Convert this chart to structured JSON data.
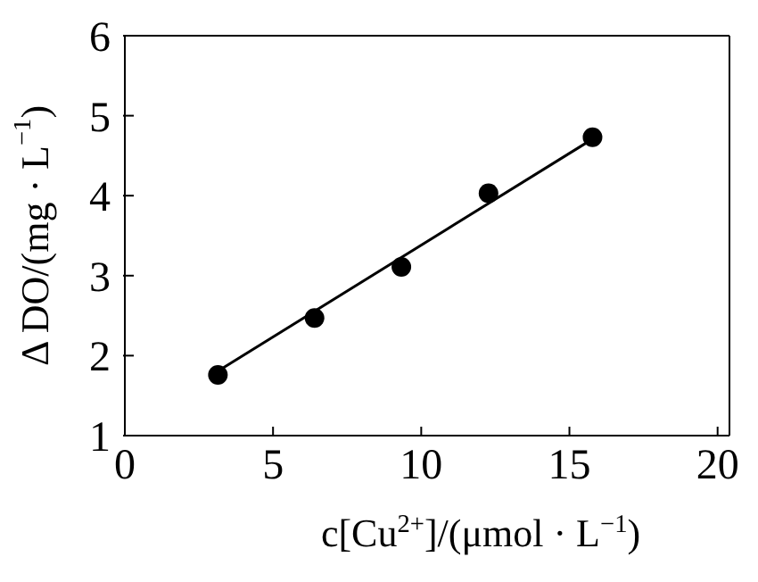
{
  "chart_data": {
    "type": "scatter",
    "xlabel": "c[Cu$^{2+}$]/(μmol · L$^{−1}$)",
    "ylabel": "Δ DO/(mg · L$^{−1}$)",
    "xlim": [
      0,
      20.4
    ],
    "xticks": [
      0,
      5,
      10,
      15,
      20
    ],
    "ylim": [
      1,
      6
    ],
    "yticks": [
      1,
      2,
      3,
      4,
      5,
      6
    ],
    "grid": false,
    "legend": false,
    "marker": "circle",
    "series": [
      {
        "color": "#000000",
        "x": [
          3.14,
          6.4,
          9.33,
          12.27,
          15.78
        ],
        "values": [
          1.76,
          2.47,
          3.11,
          4.03,
          4.73
        ]
      },
      {
        "type": "line",
        "color": "#000000",
        "marker": "none",
        "line_style": "solid",
        "x": [
          3.2,
          15.7
        ],
        "values": [
          1.82,
          4.69
        ]
      }
    ]
  }
}
